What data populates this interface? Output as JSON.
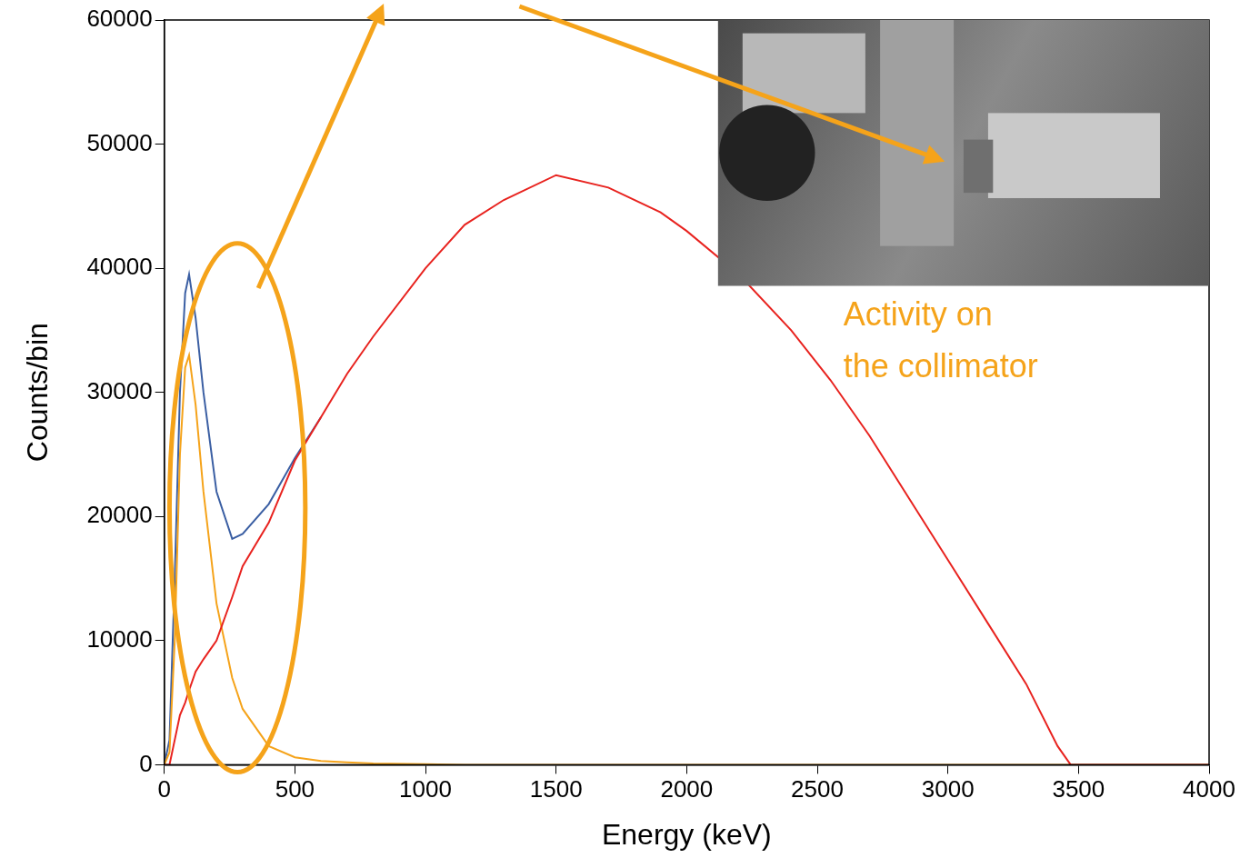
{
  "chart_data": {
    "type": "line",
    "x_label": "Energy (keV)",
    "y_label": "Counts/bin",
    "x": [
      0,
      20,
      40,
      60,
      80,
      95,
      120,
      150,
      200,
      260,
      300,
      400,
      500,
      600,
      700,
      800,
      1000,
      1150,
      1300,
      1500,
      1700,
      1900,
      2000,
      2200,
      2400,
      2550,
      2700,
      2850,
      3000,
      3150,
      3300,
      3420,
      3470,
      3600,
      4000
    ],
    "series": [
      {
        "color": "#e8231f",
        "values": [
          0,
          0,
          2000,
          4000,
          5000,
          6000,
          7500,
          8500,
          10000,
          13500,
          16000,
          19500,
          24500,
          28000,
          31500,
          34500,
          40000,
          43500,
          45500,
          47500,
          46500,
          44500,
          43000,
          39500,
          35000,
          31000,
          26500,
          21500,
          16500,
          11500,
          6500,
          1500,
          0,
          0,
          0
        ]
      },
      {
        "color": "#f5a31a",
        "values": [
          0,
          1000,
          10000,
          25000,
          32000,
          33000,
          29000,
          22000,
          13000,
          7000,
          4500,
          1500,
          600,
          300,
          200,
          100,
          50,
          0,
          0,
          0,
          0,
          0,
          0,
          0,
          0,
          0,
          0,
          0,
          0,
          0,
          0,
          0,
          0,
          0,
          0
        ]
      },
      {
        "color": "#3b5fa3",
        "values": [
          0,
          2000,
          15000,
          30000,
          38000,
          39500,
          36000,
          30000,
          22000,
          18200,
          18600,
          21000,
          24700,
          28000,
          null,
          null,
          null,
          null,
          null,
          null,
          null,
          null,
          null,
          null,
          null,
          null,
          null,
          null,
          null,
          null,
          null,
          null,
          null,
          null,
          null
        ]
      }
    ],
    "xlim": [
      0,
      4000
    ],
    "xticks": [
      0,
      500,
      1000,
      1500,
      2000,
      2500,
      3000,
      3500,
      4000
    ],
    "ylim": [
      0,
      60000
    ],
    "yticks": [
      0,
      10000,
      20000,
      30000,
      40000,
      50000,
      60000
    ],
    "grid": false,
    "annotation": [
      "Activity on",
      "the collimator"
    ]
  }
}
